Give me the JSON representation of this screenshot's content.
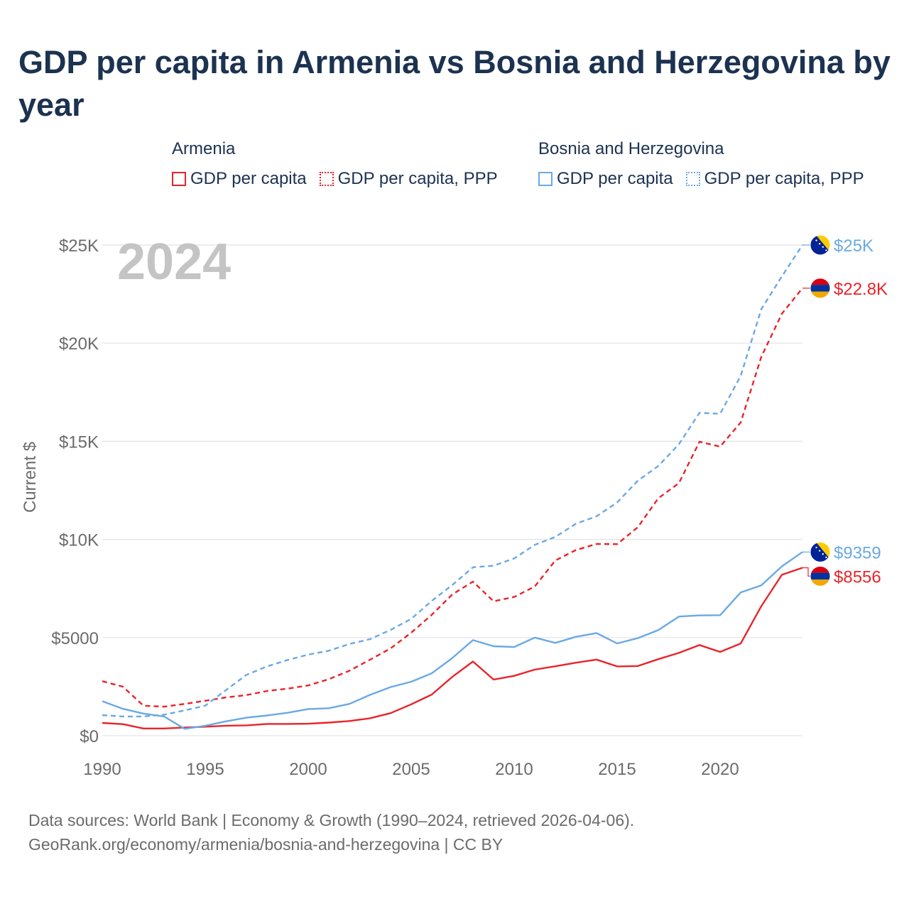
{
  "title": "GDP per capita in Armenia vs Bosnia and Herzegovina by year",
  "legend": {
    "groups": [
      {
        "name": "Armenia",
        "color": "#e8242a",
        "items": [
          {
            "label": "GDP per capita",
            "style": "solid"
          },
          {
            "label": "GDP per capita, PPP",
            "style": "dotted"
          }
        ]
      },
      {
        "name": "Bosnia and Herzegovina",
        "color": "#6aa9e4",
        "items": [
          {
            "label": "GDP per capita",
            "style": "solid"
          },
          {
            "label": "GDP per capita, PPP",
            "style": "dotted"
          }
        ]
      }
    ]
  },
  "chart_data": {
    "type": "line",
    "year_watermark": "2024",
    "ylabel": "Current $",
    "xlabel": "",
    "xlim": [
      1990,
      2024
    ],
    "ylim": [
      0,
      25000
    ],
    "grid": true,
    "x_ticks": [
      "1990",
      "1995",
      "2000",
      "2005",
      "2010",
      "2015",
      "2020"
    ],
    "y_ticks": [
      {
        "value": 0,
        "label": "$0"
      },
      {
        "value": 5000,
        "label": "$5000"
      },
      {
        "value": 10000,
        "label": "$10K"
      },
      {
        "value": 15000,
        "label": "$15K"
      },
      {
        "value": 20000,
        "label": "$20K"
      },
      {
        "value": 25000,
        "label": "$25K"
      }
    ],
    "x": [
      1990,
      1991,
      1992,
      1993,
      1994,
      1995,
      1996,
      1997,
      1998,
      1999,
      2000,
      2001,
      2002,
      2003,
      2004,
      2005,
      2006,
      2007,
      2008,
      2009,
      2010,
      2011,
      2012,
      2013,
      2014,
      2015,
      2016,
      2017,
      2018,
      2019,
      2020,
      2021,
      2022,
      2023,
      2024
    ],
    "series": [
      {
        "name": "Armenia GDP per capita",
        "country": "Armenia",
        "color": "#e8242a",
        "dash": false,
        "end_label": "$8556",
        "flag": "armenia",
        "values": [
          650,
          590,
          370,
          370,
          420,
          460,
          510,
          530,
          600,
          600,
          610,
          670,
          750,
          890,
          1150,
          1600,
          2100,
          3000,
          3780,
          2860,
          3050,
          3370,
          3540,
          3720,
          3880,
          3530,
          3550,
          3900,
          4220,
          4620,
          4270,
          4700,
          6600,
          8200,
          8556
        ]
      },
      {
        "name": "Armenia GDP per capita, PPP",
        "country": "Armenia",
        "color": "#e8242a",
        "dash": true,
        "end_label": "$22.8K",
        "flag": "armenia",
        "values": [
          2780,
          2500,
          1530,
          1480,
          1620,
          1780,
          1950,
          2070,
          2280,
          2400,
          2560,
          2880,
          3310,
          3870,
          4450,
          5250,
          6160,
          7200,
          7850,
          6850,
          7070,
          7600,
          8930,
          9460,
          9770,
          9760,
          10620,
          12100,
          12870,
          14980,
          14730,
          15960,
          19300,
          21500,
          22800
        ]
      },
      {
        "name": "Bosnia and Herzegovina GDP per capita",
        "country": "Bosnia and Herzegovina",
        "color": "#6aa9e4",
        "dash": false,
        "end_label": "$9359",
        "flag": "bosnia",
        "values": [
          1760,
          1370,
          1130,
          980,
          350,
          510,
          730,
          920,
          1030,
          1170,
          1360,
          1400,
          1620,
          2080,
          2480,
          2750,
          3180,
          3960,
          4870,
          4560,
          4520,
          5000,
          4730,
          5040,
          5230,
          4700,
          4970,
          5380,
          6070,
          6130,
          6140,
          7300,
          7660,
          8630,
          9359
        ]
      },
      {
        "name": "Bosnia and Herzegovina GDP per capita, PPP",
        "country": "Bosnia and Herzegovina",
        "color": "#6aa9e4",
        "dash": true,
        "end_label": "$25K",
        "flag": "bosnia",
        "values": [
          1050,
          980,
          980,
          1070,
          1290,
          1530,
          2320,
          3100,
          3530,
          3860,
          4130,
          4330,
          4670,
          4920,
          5390,
          5950,
          6870,
          7680,
          8580,
          8660,
          9030,
          9720,
          10130,
          10800,
          11180,
          11880,
          12990,
          13740,
          14850,
          16450,
          16400,
          18330,
          21730,
          23400,
          25000
        ]
      }
    ]
  },
  "footer": {
    "line1": "Data sources: World Bank | Economy & Growth (1990–2024, retrieved 2026-04-06).",
    "line2": "GeoRank.org/economy/armenia/bosnia-and-herzegovina | CC BY"
  }
}
